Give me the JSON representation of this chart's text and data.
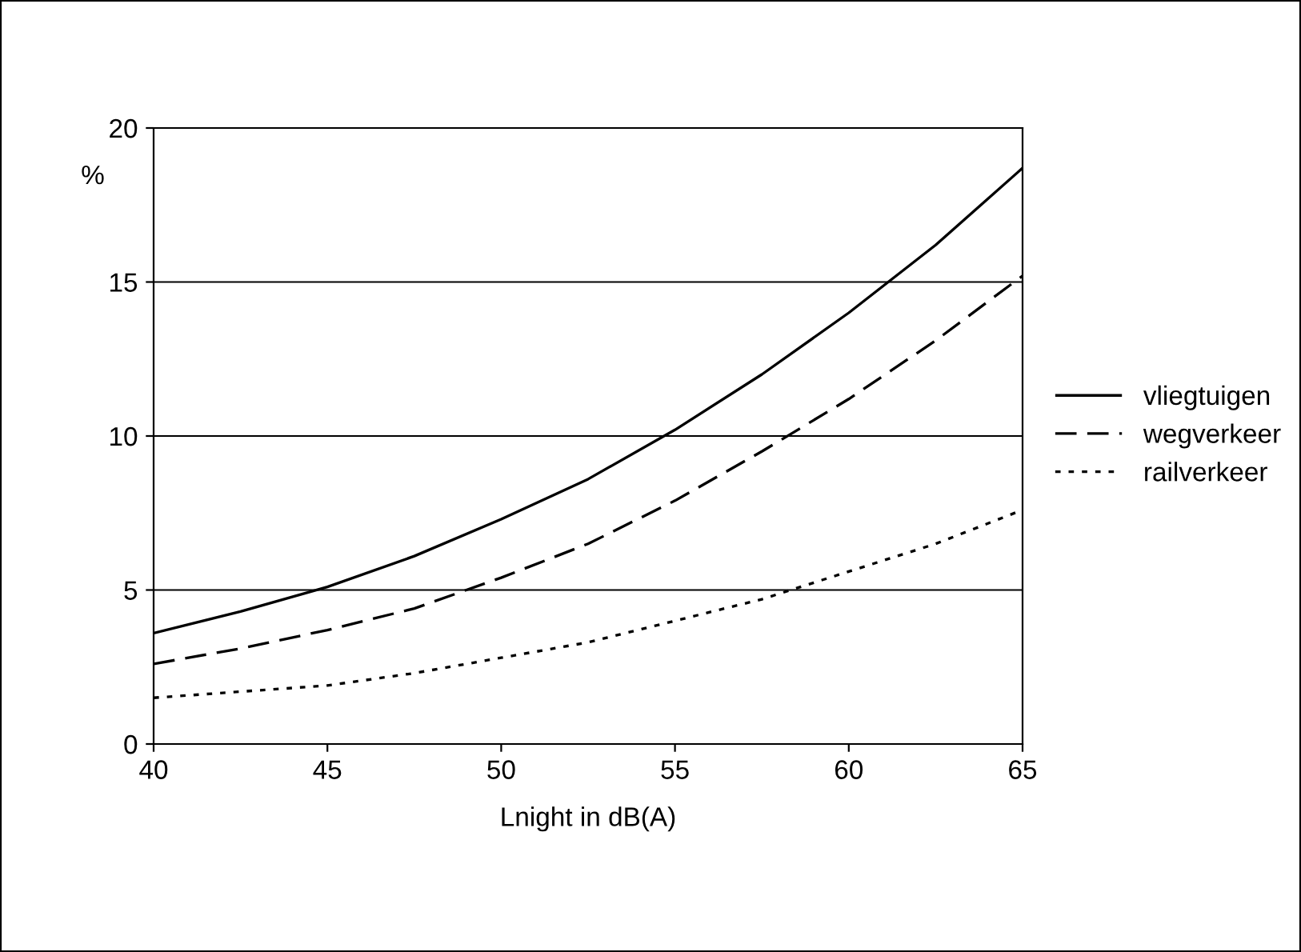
{
  "chart_data": {
    "type": "line",
    "xlabel": "Lnight in dB(A)",
    "ylabel": "%",
    "x": [
      40,
      42.5,
      45,
      47.5,
      50,
      52.5,
      55,
      57.5,
      60,
      62.5,
      65
    ],
    "series": [
      {
        "name": "vliegtuigen",
        "color": "#000000",
        "line_style": "solid",
        "values": [
          3.6,
          4.3,
          5.1,
          6.1,
          7.3,
          8.6,
          10.2,
          12.0,
          14.0,
          16.2,
          18.7
        ]
      },
      {
        "name": "wegverkeer",
        "color": "#000000",
        "line_style": "dashed",
        "values": [
          2.6,
          3.1,
          3.7,
          4.4,
          5.4,
          6.5,
          7.9,
          9.5,
          11.2,
          13.1,
          15.2
        ]
      },
      {
        "name": "railverkeer",
        "color": "#000000",
        "line_style": "dotted",
        "values": [
          1.5,
          1.7,
          1.9,
          2.3,
          2.8,
          3.3,
          4.0,
          4.7,
          5.6,
          6.5,
          7.6
        ]
      }
    ],
    "xlim": [
      40,
      65
    ],
    "xticks": [
      40,
      45,
      50,
      55,
      60,
      65
    ],
    "ylim": [
      0,
      20
    ],
    "yticks": [
      0,
      5,
      10,
      15,
      20
    ],
    "grid": "y",
    "legend": "right",
    "marker": "none"
  }
}
